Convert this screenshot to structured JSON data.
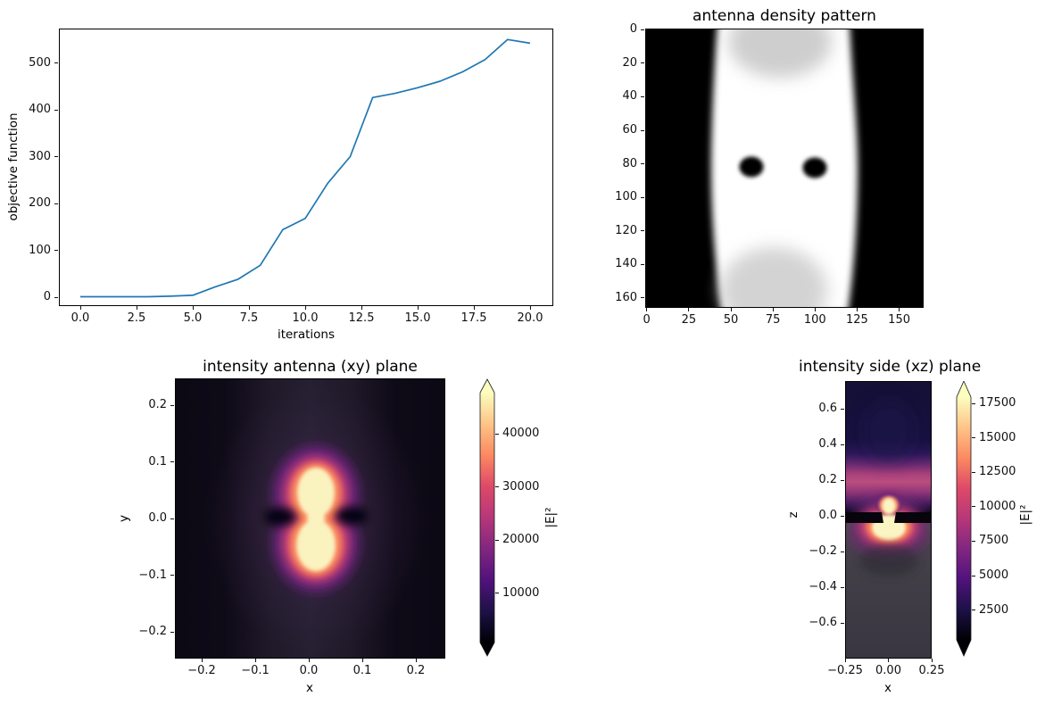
{
  "figure": {
    "background": "#ffffff"
  },
  "colors": {
    "line": "#1f77b4",
    "magma": [
      "#000004",
      "#1d1147",
      "#51127c",
      "#822681",
      "#b73779",
      "#de4968",
      "#fc8961",
      "#fec488",
      "#fcfdbf"
    ]
  },
  "plots": {
    "objective": {
      "title": "",
      "xlabel": "iterations",
      "ylabel": "objective function",
      "xticks": [
        {
          "label": "0.0",
          "v": 0
        },
        {
          "label": "2.5",
          "v": 2.5
        },
        {
          "label": "5.0",
          "v": 5
        },
        {
          "label": "7.5",
          "v": 7.5
        },
        {
          "label": "10.0",
          "v": 10
        },
        {
          "label": "12.5",
          "v": 12.5
        },
        {
          "label": "15.0",
          "v": 15
        },
        {
          "label": "17.5",
          "v": 17.5
        },
        {
          "label": "20.0",
          "v": 20
        }
      ],
      "yticks": [
        {
          "label": "0",
          "v": 0
        },
        {
          "label": "100",
          "v": 100
        },
        {
          "label": "200",
          "v": 200
        },
        {
          "label": "300",
          "v": 300
        },
        {
          "label": "400",
          "v": 400
        },
        {
          "label": "500",
          "v": 500
        }
      ]
    },
    "density": {
      "title": "antenna density pattern",
      "xticks": [
        {
          "label": "0",
          "v": 0
        },
        {
          "label": "25",
          "v": 25
        },
        {
          "label": "50",
          "v": 50
        },
        {
          "label": "75",
          "v": 75
        },
        {
          "label": "100",
          "v": 100
        },
        {
          "label": "125",
          "v": 125
        },
        {
          "label": "150",
          "v": 150
        }
      ],
      "yticks": [
        {
          "label": "0",
          "v": 0
        },
        {
          "label": "20",
          "v": 20
        },
        {
          "label": "40",
          "v": 40
        },
        {
          "label": "60",
          "v": 60
        },
        {
          "label": "80",
          "v": 80
        },
        {
          "label": "100",
          "v": 100
        },
        {
          "label": "120",
          "v": 120
        },
        {
          "label": "140",
          "v": 140
        },
        {
          "label": "160",
          "v": 160
        }
      ]
    },
    "xy": {
      "title": "intensity antenna (xy) plane",
      "xlabel": "x",
      "ylabel": "y",
      "xticks": [
        {
          "label": "−0.2",
          "v": -0.2
        },
        {
          "label": "−0.1",
          "v": -0.1
        },
        {
          "label": "0.0",
          "v": 0
        },
        {
          "label": "0.1",
          "v": 0.1
        },
        {
          "label": "0.2",
          "v": 0.2
        }
      ],
      "yticks": [
        {
          "label": "0.2",
          "v": 0.2
        },
        {
          "label": "0.1",
          "v": 0.1
        },
        {
          "label": "0.0",
          "v": 0
        },
        {
          "label": "−0.1",
          "v": -0.1
        },
        {
          "label": "−0.2",
          "v": -0.2
        }
      ],
      "colorbar": {
        "label": "|E|²",
        "ticks": [
          {
            "label": "40000",
            "v": 40000
          },
          {
            "label": "30000",
            "v": 30000
          },
          {
            "label": "20000",
            "v": 20000
          },
          {
            "label": "10000",
            "v": 10000
          }
        ]
      }
    },
    "xz": {
      "title": "intensity side (xz) plane",
      "xlabel": "x",
      "ylabel": "z",
      "xticks": [
        {
          "label": "−0.25",
          "v": -0.25
        },
        {
          "label": "0.00",
          "v": 0
        },
        {
          "label": "0.25",
          "v": 0.25
        }
      ],
      "yticks": [
        {
          "label": "0.6",
          "v": 0.6
        },
        {
          "label": "0.4",
          "v": 0.4
        },
        {
          "label": "0.2",
          "v": 0.2
        },
        {
          "label": "0.0",
          "v": 0
        },
        {
          "label": "−0.2",
          "v": -0.2
        },
        {
          "label": "−0.4",
          "v": -0.4
        },
        {
          "label": "−0.6",
          "v": -0.6
        }
      ],
      "colorbar": {
        "label": "|E|²",
        "ticks": [
          {
            "label": "17500",
            "v": 17500
          },
          {
            "label": "15000",
            "v": 15000
          },
          {
            "label": "12500",
            "v": 12500
          },
          {
            "label": "10000",
            "v": 10000
          },
          {
            "label": "7500",
            "v": 7500
          },
          {
            "label": "5000",
            "v": 5000
          },
          {
            "label": "2500",
            "v": 2500
          }
        ]
      }
    }
  },
  "chart_data": [
    {
      "type": "line",
      "title": "",
      "xlabel": "iterations",
      "ylabel": "objective function",
      "x": [
        0,
        1,
        2,
        3,
        4,
        5,
        6,
        7,
        8,
        9,
        10,
        11,
        12,
        13,
        14,
        15,
        16,
        17,
        18,
        19,
        20
      ],
      "y": [
        1,
        1,
        1,
        1,
        2,
        4,
        22,
        38,
        68,
        144,
        168,
        243,
        300,
        426,
        435,
        447,
        461,
        481,
        507,
        550,
        542
      ],
      "xlim": [
        -1,
        21
      ],
      "ylim": [
        -28,
        575
      ],
      "grid": false,
      "line_color": "#1f77b4"
    },
    {
      "type": "heatmap",
      "title": "antenna density pattern",
      "colormap": "grayscale",
      "xlim": [
        0,
        165
      ],
      "ylim": [
        167,
        0
      ],
      "features": {
        "background": "black (density 0)",
        "central_white_band_x_range": [
          42,
          124
        ],
        "band_shape": "vertical white band, slightly wider at mid-height, soft blurred edges",
        "voids": [
          {
            "center": [
              63,
              81
            ],
            "rx": 7,
            "ry": 6
          },
          {
            "center": [
              100,
              81
            ],
            "rx": 7,
            "ry": 6
          }
        ],
        "gray_smudges": [
          {
            "center": [
              80,
              10
            ],
            "note": "light gray patch top center"
          },
          {
            "center": [
              76,
              152
            ],
            "note": "light gray patch bottom center"
          }
        ]
      }
    },
    {
      "type": "heatmap",
      "title": "intensity antenna (xy) plane",
      "xlabel": "x",
      "ylabel": "y",
      "colormap": "magma",
      "extent": {
        "x": [
          -0.25,
          0.25
        ],
        "y": [
          -0.25,
          0.25
        ]
      },
      "colorbar": {
        "label": "|E|²",
        "ticks": [
          10000,
          20000,
          30000,
          40000
        ],
        "vmax_approx": 47000,
        "extend": "both"
      },
      "features": {
        "hot_lobes": [
          {
            "center": [
              0,
              0.042
            ],
            "rx": 0.035,
            "ry": 0.045,
            "value": ">45000"
          },
          {
            "center": [
              0,
              -0.042
            ],
            "rx": 0.037,
            "ry": 0.047,
            "value": ">45000"
          }
        ],
        "waist_bright_spot": {
          "center": [
            0,
            0
          ],
          "r": 0.018
        },
        "dark_nulls": [
          {
            "center": [
              -0.06,
              0.005
            ]
          },
          {
            "center": [
              0.07,
              0.007
            ]
          }
        ],
        "halo": "orange-pink-purple glow radius ~0.1 around lobes",
        "background": "near-black with faint lighter vertical column |x|<0.15"
      }
    },
    {
      "type": "heatmap",
      "title": "intensity side (xz) plane",
      "xlabel": "x",
      "ylabel": "z",
      "colormap": "magma",
      "extent": {
        "x": [
          -0.25,
          0.25
        ],
        "z": [
          -0.78,
          0.76
        ]
      },
      "colorbar": {
        "label": "|E|²",
        "ticks": [
          2500,
          5000,
          7500,
          10000,
          12500,
          15000,
          17500
        ],
        "extend": "both"
      },
      "features": {
        "upper_dark_region": "z > 0.4 very dark navy",
        "radiation_band": {
          "z_range": [
            0.1,
            0.38
          ],
          "peak_z": 0.22,
          "color": "pink-magenta"
        },
        "antenna_slab": {
          "z_range": [
            -0.035,
            0.025
          ],
          "color": "black",
          "gap_x": [
            -0.035,
            0.04
          ]
        },
        "hotspot": {
          "center": [
            0,
            -0.03
          ],
          "rx": 0.095,
          "rz": 0.08,
          "value": ">17500"
        },
        "cap_above_slab": {
          "center": [
            0,
            0.04
          ],
          "r": 0.05
        },
        "substrate": "z < -0.05 medium dark gray with faint darker patch near z=-0.25"
      }
    }
  ]
}
